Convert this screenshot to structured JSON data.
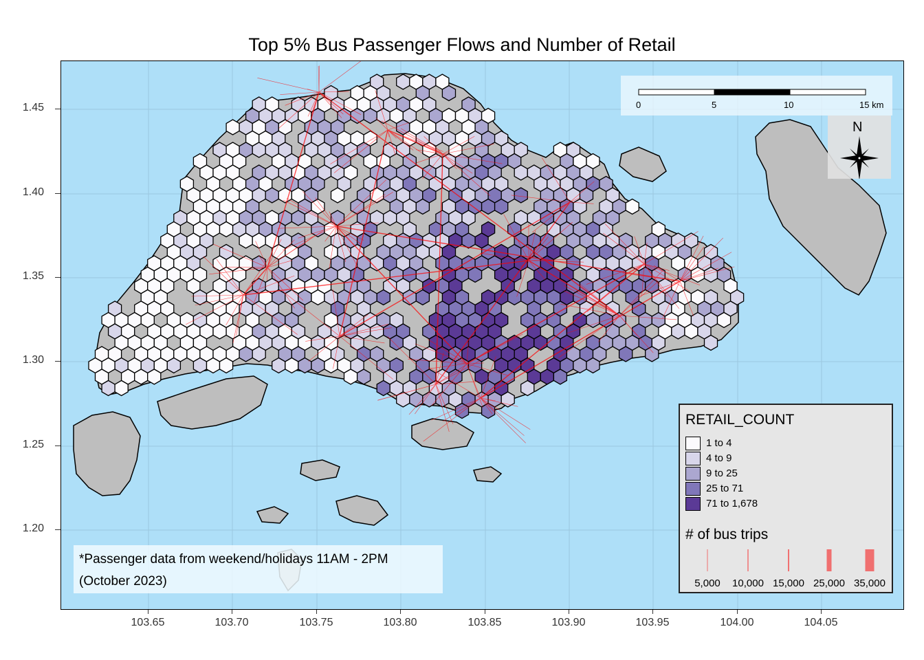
{
  "title": "Top 5% Bus Passenger Flows and Number of Retail",
  "axes": {
    "y_ticks": [
      "1.45",
      "1.40",
      "1.35",
      "1.30",
      "1.25",
      "1.20"
    ],
    "x_ticks": [
      "103.65",
      "103.70",
      "103.75",
      "103.80",
      "103.85",
      "103.90",
      "103.95",
      "104.00",
      "104.05"
    ]
  },
  "scale_bar": {
    "labels": [
      "0",
      "5",
      "10",
      "15 km"
    ]
  },
  "north_arrow": {
    "label": "N"
  },
  "legend": {
    "fill_title": "RETAIL_COUNT",
    "fill_classes": [
      {
        "label": "1 to 4",
        "color": "#fbfafd"
      },
      {
        "label": "4 to 9",
        "color": "#d8d6ea"
      },
      {
        "label": "9 to 25",
        "color": "#aba7d0"
      },
      {
        "label": "25 to 71",
        "color": "#8077b9"
      },
      {
        "label": "71 to 1,678",
        "color": "#5b3a96"
      }
    ],
    "flow_title": "# of bus trips",
    "flow_classes": [
      {
        "label": "5,000",
        "width": 1
      },
      {
        "label": "10,000",
        "width": 1.5
      },
      {
        "label": "15,000",
        "width": 2
      },
      {
        "label": "25,000",
        "width": 7
      },
      {
        "label": "35,000",
        "width": 13
      }
    ],
    "flow_color": "#f07070"
  },
  "note": {
    "line1": "*Passenger data from weekend/holidays 11AM - 2PM",
    "line2": "(October 2023)"
  },
  "colors": {
    "sea": "#aedff8",
    "land": "#bebebe",
    "flow": "#ff0000"
  }
}
